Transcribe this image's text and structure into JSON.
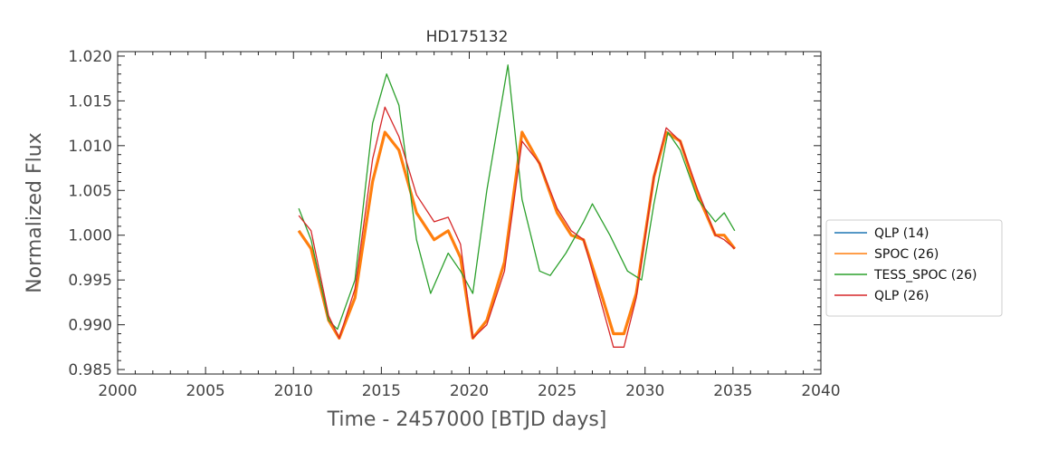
{
  "chart_data": {
    "type": "line",
    "title": "HD175132",
    "xlabel": "Time - 2457000 [BTJD days]",
    "ylabel": "Normalized Flux",
    "xlim": [
      2000,
      2040
    ],
    "ylim": [
      0.9845,
      1.0205
    ],
    "xticks": [
      2000,
      2005,
      2010,
      2015,
      2020,
      2025,
      2030,
      2035,
      2040
    ],
    "xtick_labels": [
      "2000",
      "2005",
      "2010",
      "2015",
      "2020",
      "2025",
      "2030",
      "2035",
      "2040"
    ],
    "yticks": [
      0.985,
      0.99,
      0.995,
      1.0,
      1.005,
      1.01,
      1.015,
      1.02
    ],
    "ytick_labels": [
      "0.985",
      "0.990",
      "0.995",
      "1.000",
      "1.005",
      "1.010",
      "1.015",
      "1.020"
    ],
    "grid": false,
    "legend_position": "outside-right",
    "series": [
      {
        "name": "QLP (14)",
        "color": "#1f77b4",
        "x": [
          2010.3,
          2011.0,
          2012.0,
          2012.6,
          2013.5,
          2014.5,
          2015.2,
          2016.0,
          2017.0,
          2018.0,
          2018.8,
          2019.5,
          2020.2,
          2021.0,
          2022.0,
          2023.0,
          2024.0,
          2025.0,
          2025.8,
          2026.5,
          2027.5,
          2028.2,
          2028.8,
          2029.5,
          2030.5,
          2031.2,
          2032.0,
          2033.0,
          2034.0,
          2034.5,
          2035.1
        ],
        "y": [
          1.0005,
          0.9985,
          0.9905,
          0.9885,
          0.993,
          1.006,
          1.0115,
          1.0095,
          1.0025,
          0.9995,
          1.0005,
          0.9975,
          0.9885,
          0.9905,
          0.997,
          1.0115,
          1.008,
          1.0025,
          1.0,
          0.9995,
          0.9935,
          0.989,
          0.989,
          0.9935,
          1.0065,
          1.0115,
          1.0105,
          1.0045,
          1.0,
          1.0,
          0.9985
        ]
      },
      {
        "name": "SPOC (26)",
        "color": "#ff7f0e",
        "x": [
          2010.3,
          2011.0,
          2012.0,
          2012.6,
          2013.5,
          2014.5,
          2015.2,
          2016.0,
          2017.0,
          2018.0,
          2018.8,
          2019.5,
          2020.2,
          2021.0,
          2022.0,
          2023.0,
          2024.0,
          2025.0,
          2025.8,
          2026.5,
          2027.5,
          2028.2,
          2028.8,
          2029.5,
          2030.5,
          2031.2,
          2032.0,
          2033.0,
          2034.0,
          2034.5,
          2035.1
        ],
        "y": [
          1.0005,
          0.9985,
          0.9905,
          0.9885,
          0.993,
          1.006,
          1.0115,
          1.0095,
          1.0025,
          0.9995,
          1.0005,
          0.9975,
          0.9885,
          0.9905,
          0.997,
          1.0115,
          1.008,
          1.0025,
          1.0,
          0.9995,
          0.9935,
          0.989,
          0.989,
          0.9935,
          1.0065,
          1.0115,
          1.0105,
          1.0045,
          1.0,
          1.0,
          0.9985
        ]
      },
      {
        "name": "TESS_SPOC (26)",
        "color": "#2ca02c",
        "x": [
          2010.3,
          2011.0,
          2012.0,
          2012.5,
          2013.5,
          2014.5,
          2015.3,
          2016.0,
          2017.0,
          2017.8,
          2018.8,
          2019.5,
          2020.2,
          2021.0,
          2022.2,
          2023.0,
          2024.0,
          2024.6,
          2025.5,
          2026.5,
          2027.0,
          2028.0,
          2029.0,
          2029.8,
          2030.5,
          2031.3,
          2032.0,
          2033.0,
          2034.0,
          2034.5,
          2035.1
        ],
        "y": [
          1.003,
          0.9995,
          0.9905,
          0.9895,
          0.995,
          1.0125,
          1.018,
          1.0145,
          0.9995,
          0.9935,
          0.998,
          0.996,
          0.9935,
          1.005,
          1.019,
          1.004,
          0.996,
          0.9955,
          0.998,
          1.0015,
          1.0035,
          1.0,
          0.996,
          0.995,
          1.0035,
          1.0115,
          1.0095,
          1.004,
          1.0015,
          1.0025,
          1.0005
        ]
      },
      {
        "name": "QLP (26)",
        "color": "#d62728",
        "x": [
          2010.3,
          2011.0,
          2012.0,
          2012.6,
          2013.5,
          2014.5,
          2015.2,
          2016.0,
          2017.0,
          2018.0,
          2018.8,
          2019.5,
          2020.2,
          2021.0,
          2022.0,
          2023.0,
          2024.0,
          2025.0,
          2025.8,
          2026.5,
          2027.5,
          2028.2,
          2028.8,
          2029.5,
          2030.5,
          2031.2,
          2032.0,
          2033.0,
          2034.0,
          2034.5,
          2035.1
        ],
        "y": [
          1.0022,
          1.0005,
          0.991,
          0.9885,
          0.994,
          1.0085,
          1.0143,
          1.011,
          1.0045,
          1.0015,
          1.002,
          0.999,
          0.9885,
          0.99,
          0.996,
          1.0105,
          1.008,
          1.003,
          1.0005,
          0.9995,
          0.9925,
          0.9875,
          0.9875,
          0.993,
          1.0065,
          1.012,
          1.0105,
          1.005,
          1.0,
          0.9995,
          0.9985
        ]
      }
    ]
  }
}
